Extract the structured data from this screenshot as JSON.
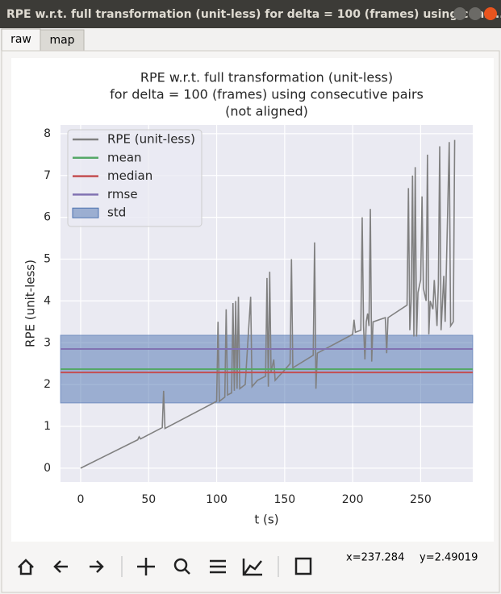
{
  "window": {
    "title": "RPE w.r.t. full transformation (unit-less) for delta = 100 (frames) using cons..."
  },
  "tabs": [
    "raw",
    "map"
  ],
  "chart_data": {
    "type": "line",
    "title": [
      "RPE w.r.t. full transformation (unit-less)",
      "for delta = 100 (frames) using consecutive pairs",
      "(not aligned)"
    ],
    "x_label": "t (s)",
    "y_label": "RPE (unit-less)",
    "xlim": [
      -14.8,
      288.3
    ],
    "ylim": [
      -0.33,
      8.21
    ],
    "xticks": [
      0,
      50,
      100,
      150,
      200,
      250
    ],
    "yticks": [
      0,
      1,
      2,
      3,
      4,
      5,
      6,
      7,
      8
    ],
    "grid": true,
    "legend": "upper left",
    "series": [
      {
        "name": "RPE (unit-less)",
        "color": "#808080",
        "x": [
          0,
          42,
          43,
          44,
          60,
          61,
          62,
          100,
          101,
          102,
          106,
          107,
          108,
          111,
          112,
          113,
          114,
          115,
          116,
          117,
          121,
          125,
          126,
          130,
          136,
          137,
          138,
          139,
          140,
          142,
          143,
          150,
          154,
          155,
          156,
          171,
          172,
          173,
          174,
          200,
          201,
          202,
          206,
          207,
          208,
          209,
          210,
          211,
          212,
          213,
          214,
          215,
          224,
          225,
          226,
          240,
          241,
          242,
          243,
          244,
          245,
          246,
          247,
          248,
          250,
          251,
          252,
          254,
          255,
          256,
          257,
          259,
          260,
          262,
          263,
          264,
          265,
          267,
          268,
          271,
          272,
          274,
          275
        ],
        "values": [
          0,
          0.68,
          0.75,
          0.7,
          0.97,
          1.85,
          0.95,
          1.6,
          3.5,
          1.6,
          1.7,
          3.8,
          1.75,
          1.8,
          3.95,
          1.85,
          4.0,
          1.9,
          4.1,
          1.9,
          2.0,
          4.1,
          1.95,
          2.1,
          2.2,
          4.55,
          1.95,
          4.7,
          2.3,
          2.6,
          2.1,
          2.35,
          2.5,
          5.0,
          2.4,
          2.7,
          5.4,
          1.9,
          2.75,
          3.2,
          3.55,
          3.25,
          3.3,
          6.0,
          3.4,
          2.6,
          3.5,
          3.7,
          3.4,
          6.2,
          2.55,
          3.5,
          3.6,
          2.75,
          3.6,
          3.9,
          6.7,
          3.3,
          4.0,
          7.0,
          3.15,
          7.2,
          3.15,
          4.2,
          4.5,
          6.5,
          4.3,
          4.0,
          7.5,
          3.2,
          4.0,
          3.8,
          4.5,
          3.4,
          4.4,
          7.7,
          3.3,
          4.6,
          3.5,
          7.8,
          3.4,
          3.5,
          7.85
        ]
      }
    ],
    "hlines": [
      {
        "name": "mean",
        "color": "#55a868",
        "value": 2.37
      },
      {
        "name": "median",
        "color": "#c44e52",
        "value": 2.29
      },
      {
        "name": "rmse",
        "color": "#8172b2",
        "value": 2.85
      }
    ],
    "bands": [
      {
        "name": "std",
        "color": "#4c72b0",
        "lower": 1.56,
        "upper": 3.18
      }
    ]
  },
  "status": {
    "x": "x=237.284",
    "y": "y=2.49019"
  }
}
